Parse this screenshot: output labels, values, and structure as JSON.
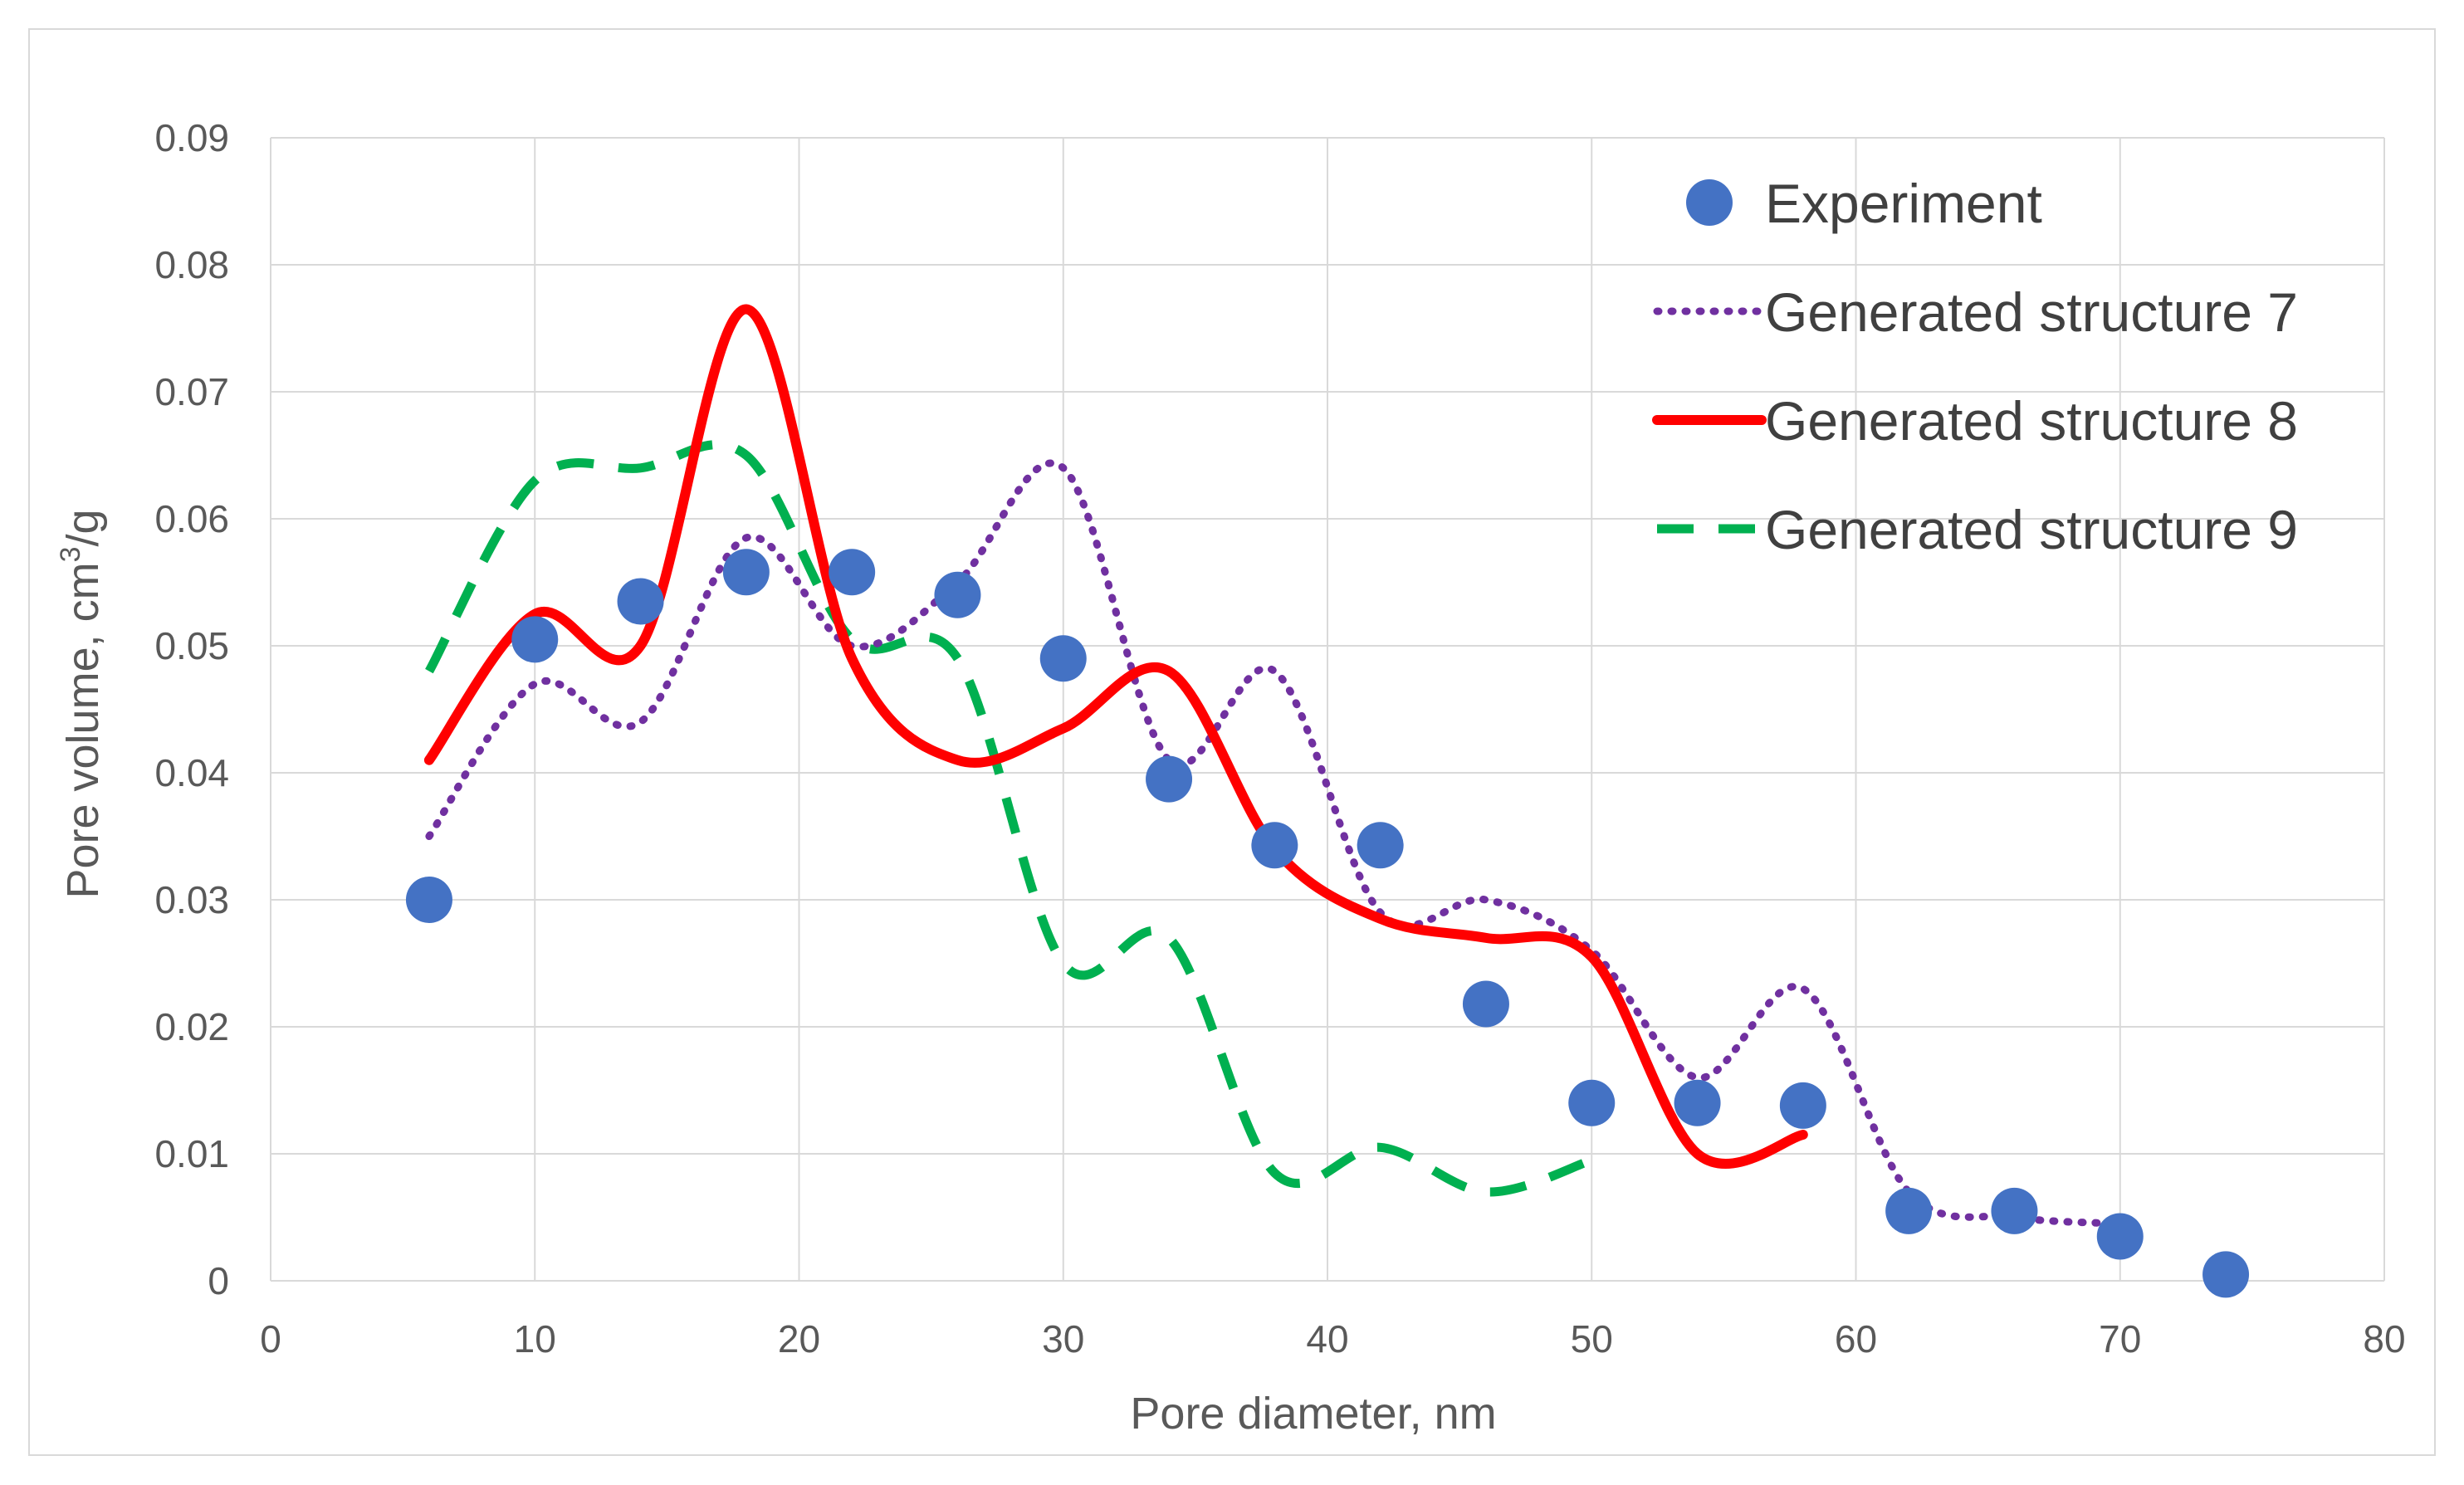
{
  "chart_data": {
    "type": "line",
    "title": "",
    "xlabel": "Pore diameter, nm",
    "ylabel_parts": [
      "Pore volume, cm",
      "3",
      "/g"
    ],
    "xlim": [
      0,
      80
    ],
    "ylim": [
      0,
      0.09
    ],
    "x_ticks": [
      "0",
      "10",
      "20",
      "30",
      "40",
      "50",
      "60",
      "70",
      "80"
    ],
    "y_ticks": [
      "0",
      "0.01",
      "0.02",
      "0.03",
      "0.04",
      "0.05",
      "0.06",
      "0.07",
      "0.08",
      "0.09"
    ],
    "grid": true,
    "legend_position": "top-right",
    "series": [
      {
        "name": "Experiment",
        "style": "markers",
        "color": "#4472C4",
        "x": [
          6,
          10,
          14,
          18,
          22,
          26,
          30,
          34,
          38,
          42,
          46,
          50,
          54,
          58,
          62,
          66,
          70,
          74
        ],
        "y": [
          0.03,
          0.0505,
          0.0535,
          0.0558,
          0.0558,
          0.054,
          0.049,
          0.0395,
          0.0343,
          0.0343,
          0.0218,
          0.014,
          0.014,
          0.0138,
          0.0055,
          0.0055,
          0.0035,
          0.0005
        ]
      },
      {
        "name": "Generated structure 7",
        "style": "dotted",
        "color": "#7030A0",
        "x": [
          6,
          10,
          14,
          18,
          22,
          26,
          30,
          34,
          38,
          42,
          46,
          50,
          54,
          58,
          62,
          66,
          70
        ],
        "y": [
          0.035,
          0.047,
          0.044,
          0.0585,
          0.05,
          0.055,
          0.064,
          0.041,
          0.048,
          0.029,
          0.03,
          0.026,
          0.016,
          0.023,
          0.007,
          0.005,
          0.0045
        ]
      },
      {
        "name": "Generated structure 8",
        "style": "solid",
        "color": "#FF0000",
        "x": [
          6,
          10,
          14,
          18,
          22,
          26,
          30,
          34,
          38,
          42,
          46,
          50,
          54,
          58
        ],
        "y": [
          0.041,
          0.0525,
          0.05,
          0.0765,
          0.049,
          0.041,
          0.0435,
          0.048,
          0.034,
          0.0285,
          0.027,
          0.0255,
          0.01,
          0.0115
        ]
      },
      {
        "name": "Generated structure 9",
        "style": "dashed",
        "color": "#00B050",
        "x": [
          6,
          10,
          14,
          18,
          22,
          26,
          30,
          34,
          38,
          42,
          46,
          50
        ],
        "y": [
          0.048,
          0.063,
          0.064,
          0.065,
          0.0505,
          0.049,
          0.025,
          0.027,
          0.0085,
          0.0105,
          0.007,
          0.0095
        ]
      }
    ]
  }
}
